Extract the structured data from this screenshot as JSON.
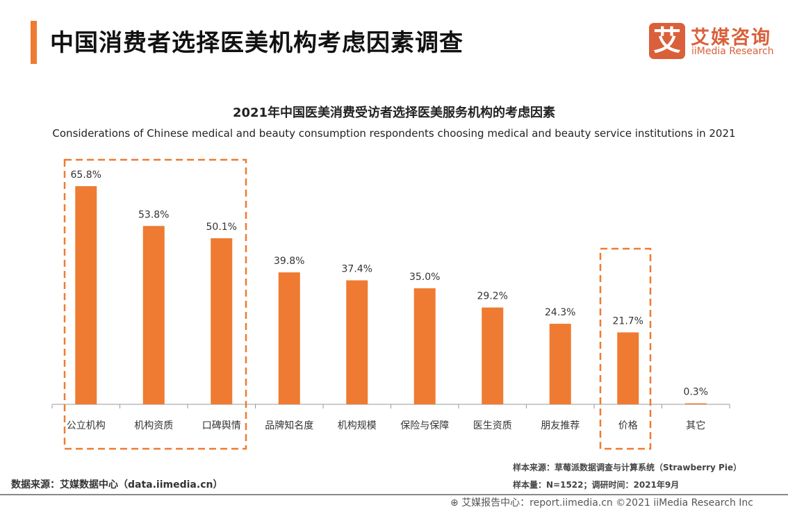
{
  "header": {
    "title": "中国消费者选择医美机构考虑因素调查",
    "logo_mark": "艾",
    "logo_cn": "艾媒咨询",
    "logo_en": "iiMedia Research",
    "accent_color": "#ee7b31"
  },
  "chart_data": {
    "type": "bar",
    "title": "2021年中国医美消费受访者选择医美服务机构的考虑因素",
    "subtitle": "Considerations of Chinese medical and beauty consumption respondents choosing medical and beauty service institutions in 2021",
    "categories": [
      "公立机构",
      "机构资质",
      "口碑舆情",
      "品牌知名度",
      "机构规模",
      "保险与保障",
      "医生资质",
      "朋友推荐",
      "价格",
      "其它"
    ],
    "values": [
      65.8,
      53.8,
      50.1,
      39.8,
      37.4,
      35.0,
      29.2,
      24.3,
      21.7,
      0.3
    ],
    "labels": [
      "65.8%",
      "53.8%",
      "50.1%",
      "39.8%",
      "37.4%",
      "35.0%",
      "29.2%",
      "24.3%",
      "21.7%",
      "0.3%"
    ],
    "unit": "%",
    "ylim": [
      0,
      70
    ],
    "grid": false,
    "bar_color": "#ee7b31",
    "highlighted": [
      [
        "公立机构",
        "机构资质",
        "口碑舆情"
      ],
      [
        "价格"
      ]
    ],
    "highlight_color": "#ee7b31"
  },
  "notes": {
    "sample_source": "样本来源：草莓派数据调查与计算系统（Strawberry Pie）",
    "sample_size": "样本量：N=1522；调研时间：2021年9月"
  },
  "footer": {
    "data_source": "数据来源：艾媒数据中心（data.iimedia.cn）",
    "report_center": "艾媒报告中心：report.iimedia.cn   ©2021  iiMedia Research  Inc"
  }
}
